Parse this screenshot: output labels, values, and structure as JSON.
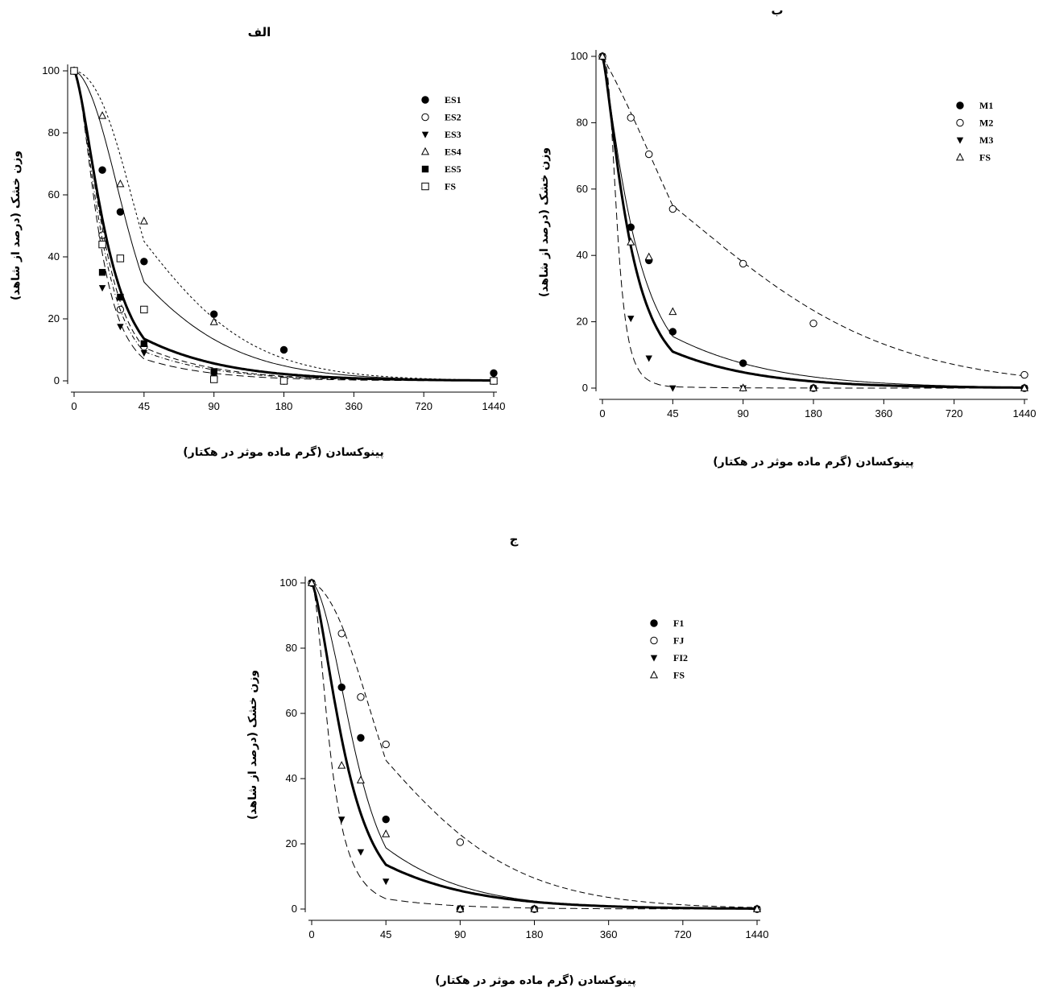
{
  "chart_data": [
    {
      "type": "scatter",
      "title": "الف",
      "xlabel": "پینوکسادن (گرم ماده موثر در هکتار)",
      "ylabel": "وزن خشک (درصد از شاهد)",
      "x_ticks": [
        "0",
        "45",
        "90",
        "180",
        "360",
        "720",
        "1440"
      ],
      "y_ticks": [
        "0",
        "20",
        "40",
        "60",
        "80",
        "100"
      ],
      "ylim": [
        0,
        100
      ],
      "x_scale": "log-like (doubling doses)",
      "legend_position": "top-right",
      "series": [
        {
          "name": "ES1",
          "marker": "filled-circle",
          "points": [
            [
              0,
              100
            ],
            [
              11.25,
              68
            ],
            [
              22.5,
              54.5
            ],
            [
              45,
              38.5
            ],
            [
              90,
              21.5
            ],
            [
              180,
              10
            ],
            [
              1440,
              2.5
            ]
          ]
        },
        {
          "name": "ES2",
          "marker": "open-circle",
          "points": [
            [
              0,
              100
            ],
            [
              11.25,
              47
            ],
            [
              22.5,
              23
            ],
            [
              45,
              11
            ],
            [
              90,
              1
            ],
            [
              180,
              0
            ],
            [
              1440,
              0
            ]
          ]
        },
        {
          "name": "ES3",
          "marker": "filled-triangle-down",
          "points": [
            [
              0,
              100
            ],
            [
              11.25,
              30
            ],
            [
              22.5,
              17.5
            ],
            [
              45,
              9
            ],
            [
              90,
              2
            ],
            [
              180,
              0
            ],
            [
              1440,
              0
            ]
          ]
        },
        {
          "name": "ES4",
          "marker": "open-triangle-up",
          "points": [
            [
              0,
              100
            ],
            [
              11.25,
              85.5
            ],
            [
              22.5,
              63.5
            ],
            [
              45,
              51.5
            ],
            [
              90,
              19
            ],
            [
              180,
              0
            ],
            [
              1440,
              0
            ]
          ]
        },
        {
          "name": "ES5",
          "marker": "filled-square",
          "points": [
            [
              0,
              100
            ],
            [
              11.25,
              35
            ],
            [
              22.5,
              27
            ],
            [
              45,
              12
            ],
            [
              90,
              3
            ],
            [
              180,
              0
            ],
            [
              1440,
              0
            ]
          ]
        },
        {
          "name": "FS",
          "marker": "open-square",
          "points": [
            [
              0,
              100
            ],
            [
              11.25,
              44
            ],
            [
              22.5,
              39.5
            ],
            [
              45,
              23
            ],
            [
              90,
              0.5
            ],
            [
              180,
              0
            ],
            [
              1440,
              0
            ]
          ]
        }
      ]
    },
    {
      "type": "scatter",
      "title": "ب",
      "xlabel": "پینوکسادن (گرم ماده موثر در هکتار)",
      "ylabel": "وزن خشک (درصد از شاهد)",
      "x_ticks": [
        "0",
        "45",
        "90",
        "180",
        "360",
        "720",
        "1440"
      ],
      "y_ticks": [
        "0",
        "20",
        "40",
        "60",
        "80",
        "100"
      ],
      "ylim": [
        0,
        100
      ],
      "legend_position": "top-right",
      "series": [
        {
          "name": "M1",
          "marker": "filled-circle",
          "points": [
            [
              0,
              100
            ],
            [
              11.25,
              48.5
            ],
            [
              22.5,
              38.5
            ],
            [
              45,
              17
            ],
            [
              90,
              7.5
            ],
            [
              180,
              0
            ],
            [
              1440,
              0
            ]
          ]
        },
        {
          "name": "M2",
          "marker": "open-circle",
          "points": [
            [
              0,
              100
            ],
            [
              11.25,
              81.5
            ],
            [
              22.5,
              70.5
            ],
            [
              45,
              54
            ],
            [
              90,
              37.5
            ],
            [
              180,
              19.5
            ],
            [
              1440,
              4
            ]
          ]
        },
        {
          "name": "M3",
          "marker": "filled-triangle-down",
          "points": [
            [
              0,
              100
            ],
            [
              11.25,
              21
            ],
            [
              22.5,
              9
            ],
            [
              45,
              0
            ],
            [
              90,
              0
            ],
            [
              180,
              0
            ],
            [
              1440,
              0
            ]
          ]
        },
        {
          "name": "FS",
          "marker": "open-triangle-up",
          "points": [
            [
              0,
              100
            ],
            [
              11.25,
              44
            ],
            [
              22.5,
              39.5
            ],
            [
              45,
              23
            ],
            [
              90,
              0
            ],
            [
              180,
              0
            ],
            [
              1440,
              0
            ]
          ]
        }
      ]
    },
    {
      "type": "scatter",
      "title": "ج",
      "xlabel": "پینوکسادن (گرم ماده موثر در هکتار)",
      "ylabel": "وزن خشک (درصد از شاهد)",
      "x_ticks": [
        "0",
        "45",
        "90",
        "180",
        "360",
        "720",
        "1440"
      ],
      "y_ticks": [
        "0",
        "20",
        "40",
        "60",
        "80",
        "100"
      ],
      "ylim": [
        0,
        100
      ],
      "legend_position": "top-right",
      "series": [
        {
          "name": "F1",
          "marker": "filled-circle",
          "points": [
            [
              0,
              100
            ],
            [
              11.25,
              68
            ],
            [
              22.5,
              52.5
            ],
            [
              45,
              27.5
            ],
            [
              90,
              0
            ],
            [
              180,
              0
            ],
            [
              1440,
              0
            ]
          ]
        },
        {
          "name": "FJ",
          "marker": "open-circle",
          "points": [
            [
              0,
              100
            ],
            [
              11.25,
              84.5
            ],
            [
              22.5,
              65
            ],
            [
              45,
              50.5
            ],
            [
              90,
              20.5
            ],
            [
              180,
              0
            ],
            [
              1440,
              0
            ]
          ]
        },
        {
          "name": "FI2",
          "marker": "filled-triangle-down",
          "points": [
            [
              0,
              100
            ],
            [
              11.25,
              27.5
            ],
            [
              22.5,
              17.5
            ],
            [
              45,
              8.5
            ],
            [
              90,
              0
            ],
            [
              180,
              0
            ],
            [
              1440,
              0
            ]
          ]
        },
        {
          "name": "FS",
          "marker": "open-triangle-up",
          "points": [
            [
              0,
              100
            ],
            [
              11.25,
              44
            ],
            [
              22.5,
              39.5
            ],
            [
              45,
              23
            ],
            [
              90,
              0
            ],
            [
              180,
              0
            ],
            [
              1440,
              0
            ]
          ]
        }
      ]
    }
  ]
}
